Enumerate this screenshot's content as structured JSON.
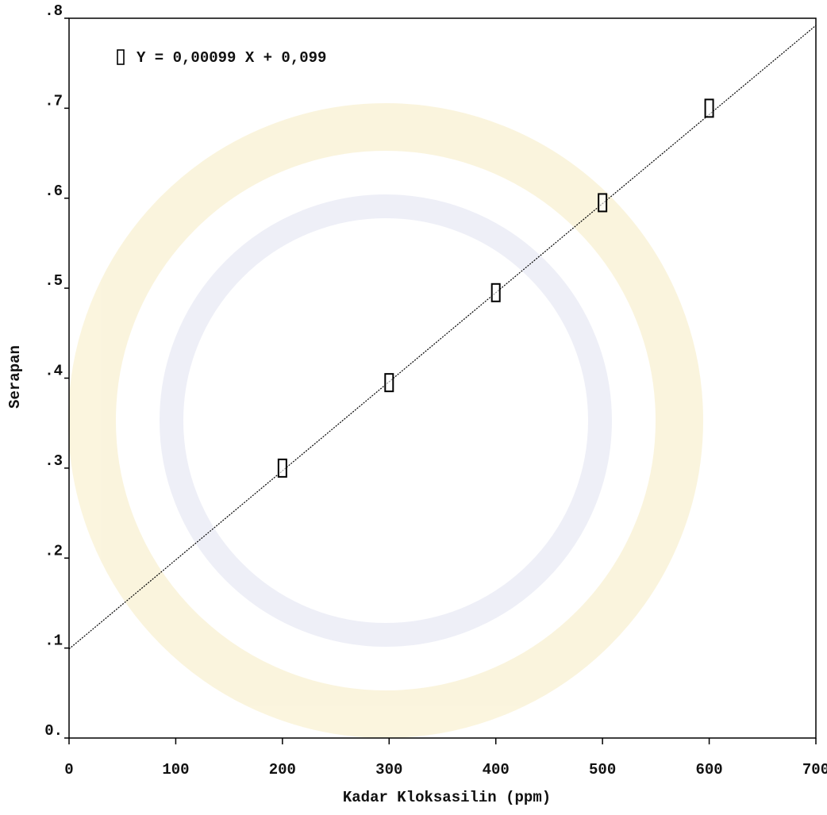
{
  "chart_data": {
    "type": "scatter",
    "x_label": "Kadar Kloksasilin (ppm)",
    "y_label": "Serapan",
    "annotation": "Y = 0,00099 X + 0,099",
    "x": [
      200,
      300,
      400,
      500,
      600
    ],
    "values": [
      0.3,
      0.395,
      0.495,
      0.595,
      0.7
    ],
    "color": "#000000",
    "trendline": {
      "slope": 0.00099,
      "intercept": 0.099
    },
    "xlim": [
      0,
      700
    ],
    "ylim": [
      0,
      0.8
    ],
    "xticks": [
      0,
      100,
      200,
      300,
      400,
      500,
      600,
      700
    ],
    "yticks": [
      {
        "value": 0,
        "label": "0."
      },
      {
        "value": 0.1,
        "label": ".1"
      },
      {
        "value": 0.2,
        "label": ".2"
      },
      {
        "value": 0.3,
        "label": ".3"
      },
      {
        "value": 0.4,
        "label": ".4"
      },
      {
        "value": 0.5,
        "label": ".5"
      },
      {
        "value": 0.6,
        "label": ".6"
      },
      {
        "value": 0.7,
        "label": ".7"
      },
      {
        "value": 0.8,
        "label": ".8"
      }
    ],
    "grid": false
  }
}
